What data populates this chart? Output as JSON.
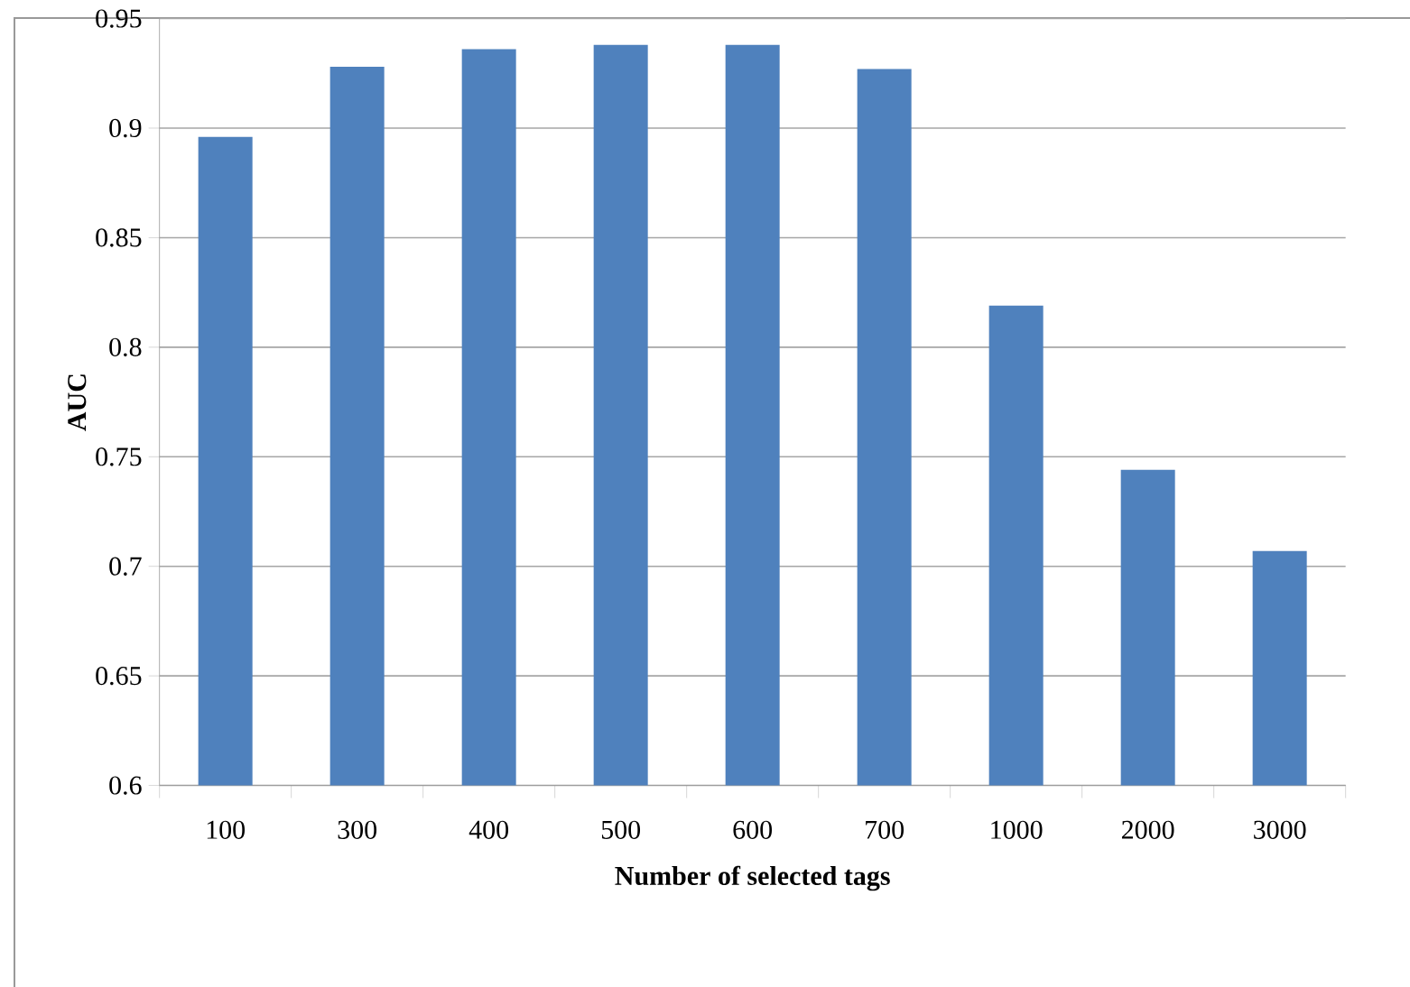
{
  "chart_data": {
    "type": "bar",
    "xlabel": "Number of selected tags",
    "ylabel": "AUC",
    "categories": [
      "100",
      "300",
      "400",
      "500",
      "600",
      "700",
      "1000",
      "2000",
      "3000"
    ],
    "values": [
      0.896,
      0.928,
      0.936,
      0.938,
      0.938,
      0.927,
      0.819,
      0.744,
      0.707
    ],
    "color": "#4f81bd",
    "ylim": [
      0.6,
      0.95
    ],
    "yticks": [
      0.6,
      0.65,
      0.7,
      0.75,
      0.8,
      0.85,
      0.9,
      0.95
    ],
    "grid": "y"
  }
}
